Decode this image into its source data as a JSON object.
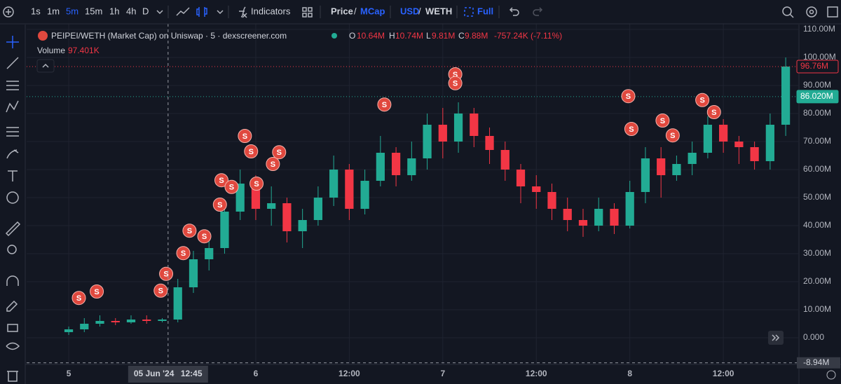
{
  "toolbar": {
    "intervals": [
      "1s",
      "1m",
      "5m",
      "15m",
      "1h",
      "4h",
      "D"
    ],
    "active_interval": 2,
    "indicators": "Indicators",
    "price_toggle": {
      "options": [
        "Price",
        "MCap"
      ],
      "separator": "/",
      "active": 1
    },
    "currency_toggle": {
      "options": [
        "USD",
        "WETH"
      ],
      "separator": "/",
      "active": 0
    },
    "full": "Full"
  },
  "legend": {
    "title": "PEIPEI/WETH (Market Cap) on Uniswap · 5 · dexscreener.com",
    "ohlc": [
      {
        "key": "O",
        "value": "10.64M"
      },
      {
        "key": "H",
        "value": "10.74M"
      },
      {
        "key": "L",
        "value": "9.81M"
      },
      {
        "key": "C",
        "value": "9.88M"
      }
    ],
    "change": "-757.24K (-7.11%)",
    "volume_label": "Volume",
    "volume_value": "97.401K"
  },
  "chart_data": {
    "type": "candlestick",
    "up_color": "#22ab94",
    "down_color": "#f23645",
    "grid": true,
    "x": [
      0,
      2,
      4,
      6,
      8,
      10,
      12,
      14,
      16,
      18,
      20,
      22,
      24,
      26,
      28,
      30,
      32,
      34,
      36,
      38,
      40,
      42,
      44,
      46,
      48,
      50,
      52,
      54,
      56,
      58,
      60,
      62,
      64,
      66,
      68,
      70,
      72,
      74,
      76,
      78,
      80,
      82,
      84,
      86,
      88,
      90,
      92
    ],
    "open": [
      2,
      3,
      5,
      6,
      5.5,
      6.5,
      6,
      6.5,
      18,
      28,
      32,
      45,
      55,
      46,
      48,
      38,
      42,
      50,
      60,
      46,
      56,
      66,
      58,
      64,
      76,
      70,
      80,
      72,
      67,
      60,
      54,
      52,
      46,
      42,
      40,
      46,
      40,
      52,
      64,
      58,
      62,
      66,
      76,
      70,
      68,
      63,
      76
    ],
    "high": [
      4,
      7,
      8,
      7,
      8,
      8,
      7,
      21,
      31,
      36,
      48,
      60,
      58,
      54,
      50,
      46,
      54,
      65,
      62,
      60,
      72,
      68,
      70,
      80,
      82,
      84,
      82,
      75,
      70,
      62,
      58,
      55,
      50,
      46,
      50,
      48,
      56,
      68,
      68,
      65,
      70,
      79,
      78,
      72,
      70,
      80,
      100
    ],
    "low": [
      1,
      2,
      4,
      4.5,
      5,
      5,
      5.5,
      5.5,
      16,
      24,
      30,
      42,
      42,
      40,
      34,
      32,
      40,
      47,
      42,
      44,
      54,
      54,
      56,
      60,
      64,
      66,
      68,
      62,
      56,
      48,
      46,
      42,
      38,
      36,
      38,
      37,
      39,
      48,
      50,
      56,
      58,
      64,
      66,
      62,
      60,
      60,
      72
    ],
    "close": [
      3,
      5,
      6,
      5.5,
      6.5,
      6,
      6.5,
      18,
      28,
      32,
      45,
      55,
      46,
      48,
      38,
      42,
      50,
      60,
      46,
      56,
      66,
      58,
      64,
      76,
      70,
      80,
      72,
      67,
      60,
      54,
      52,
      46,
      42,
      40,
      46,
      40,
      52,
      64,
      58,
      62,
      66,
      76,
      70,
      68,
      63,
      76,
      96.76
    ],
    "xlim": [
      -5.4,
      93.7
    ],
    "xticks": [
      {
        "value": 0,
        "label": "5"
      },
      {
        "value": 24,
        "label": "6"
      },
      {
        "value": 36,
        "label": "12:00"
      },
      {
        "value": 48,
        "label": "7"
      },
      {
        "value": 60,
        "label": "12:00"
      },
      {
        "value": 72,
        "label": "8"
      },
      {
        "value": 84,
        "label": "12:00"
      }
    ],
    "ylim": [
      -9.5,
      112
    ],
    "yticks": [
      {
        "value": 0,
        "label": "0.000"
      },
      {
        "value": 10,
        "label": "10.00M"
      },
      {
        "value": 20,
        "label": "20.00M"
      },
      {
        "value": 30,
        "label": "30.00M"
      },
      {
        "value": 40,
        "label": "40.00M"
      },
      {
        "value": 50,
        "label": "50.00M"
      },
      {
        "value": 60,
        "label": "60.00M"
      },
      {
        "value": 70,
        "label": "70.00M"
      },
      {
        "value": 80,
        "label": "80.00M"
      },
      {
        "value": 90,
        "label": "90.00M"
      },
      {
        "value": 100,
        "label": "100.00M"
      },
      {
        "value": 110,
        "label": "110.00M"
      }
    ],
    "price_labels": [
      {
        "value": 96.76,
        "label": "96.76M",
        "color": "#f23645",
        "style": "outline"
      },
      {
        "value": 86.02,
        "label": "86.020M",
        "color": "#22ab94",
        "style": "fill"
      }
    ],
    "crosshair": {
      "x": 12.75,
      "date_label": "05 Jun '24",
      "time_label": "12:45",
      "y": -8.94,
      "y_label": "-8.94M"
    },
    "marker_color": "#e0483e",
    "markers": [
      {
        "label": "S",
        "x": 1.3,
        "y": 14.2
      },
      {
        "label": "S",
        "x": 3.6,
        "y": 16.5
      },
      {
        "label": "S",
        "x": 11.8,
        "y": 16.8
      },
      {
        "label": "S",
        "x": 12.5,
        "y": 22.8
      },
      {
        "label": "S",
        "x": 14.7,
        "y": 30.2
      },
      {
        "label": "S",
        "x": 15.5,
        "y": 38.2
      },
      {
        "label": "S",
        "x": 17.4,
        "y": 36.2
      },
      {
        "label": "S",
        "x": 19.4,
        "y": 47.5
      },
      {
        "label": "S",
        "x": 19.6,
        "y": 56.2
      },
      {
        "label": "S",
        "x": 20.9,
        "y": 53.8
      },
      {
        "label": "S",
        "x": 22.6,
        "y": 72
      },
      {
        "label": "S",
        "x": 23.4,
        "y": 66.5
      },
      {
        "label": "S",
        "x": 24.1,
        "y": 55
      },
      {
        "label": "S",
        "x": 26.2,
        "y": 62
      },
      {
        "label": "S",
        "x": 27,
        "y": 66.2
      },
      {
        "label": "S",
        "x": 40.5,
        "y": 83.2
      },
      {
        "label": "S",
        "x": 49.6,
        "y": 94
      },
      {
        "label": "S",
        "x": 49.6,
        "y": 90.8
      },
      {
        "label": "S",
        "x": 71.8,
        "y": 86.2
      },
      {
        "label": "S",
        "x": 72.2,
        "y": 74.5
      },
      {
        "label": "S",
        "x": 76.2,
        "y": 77.5
      },
      {
        "label": "S",
        "x": 77.5,
        "y": 72.2
      },
      {
        "label": "S",
        "x": 81.3,
        "y": 84.8
      },
      {
        "label": "S",
        "x": 82.8,
        "y": 80.5
      }
    ]
  }
}
